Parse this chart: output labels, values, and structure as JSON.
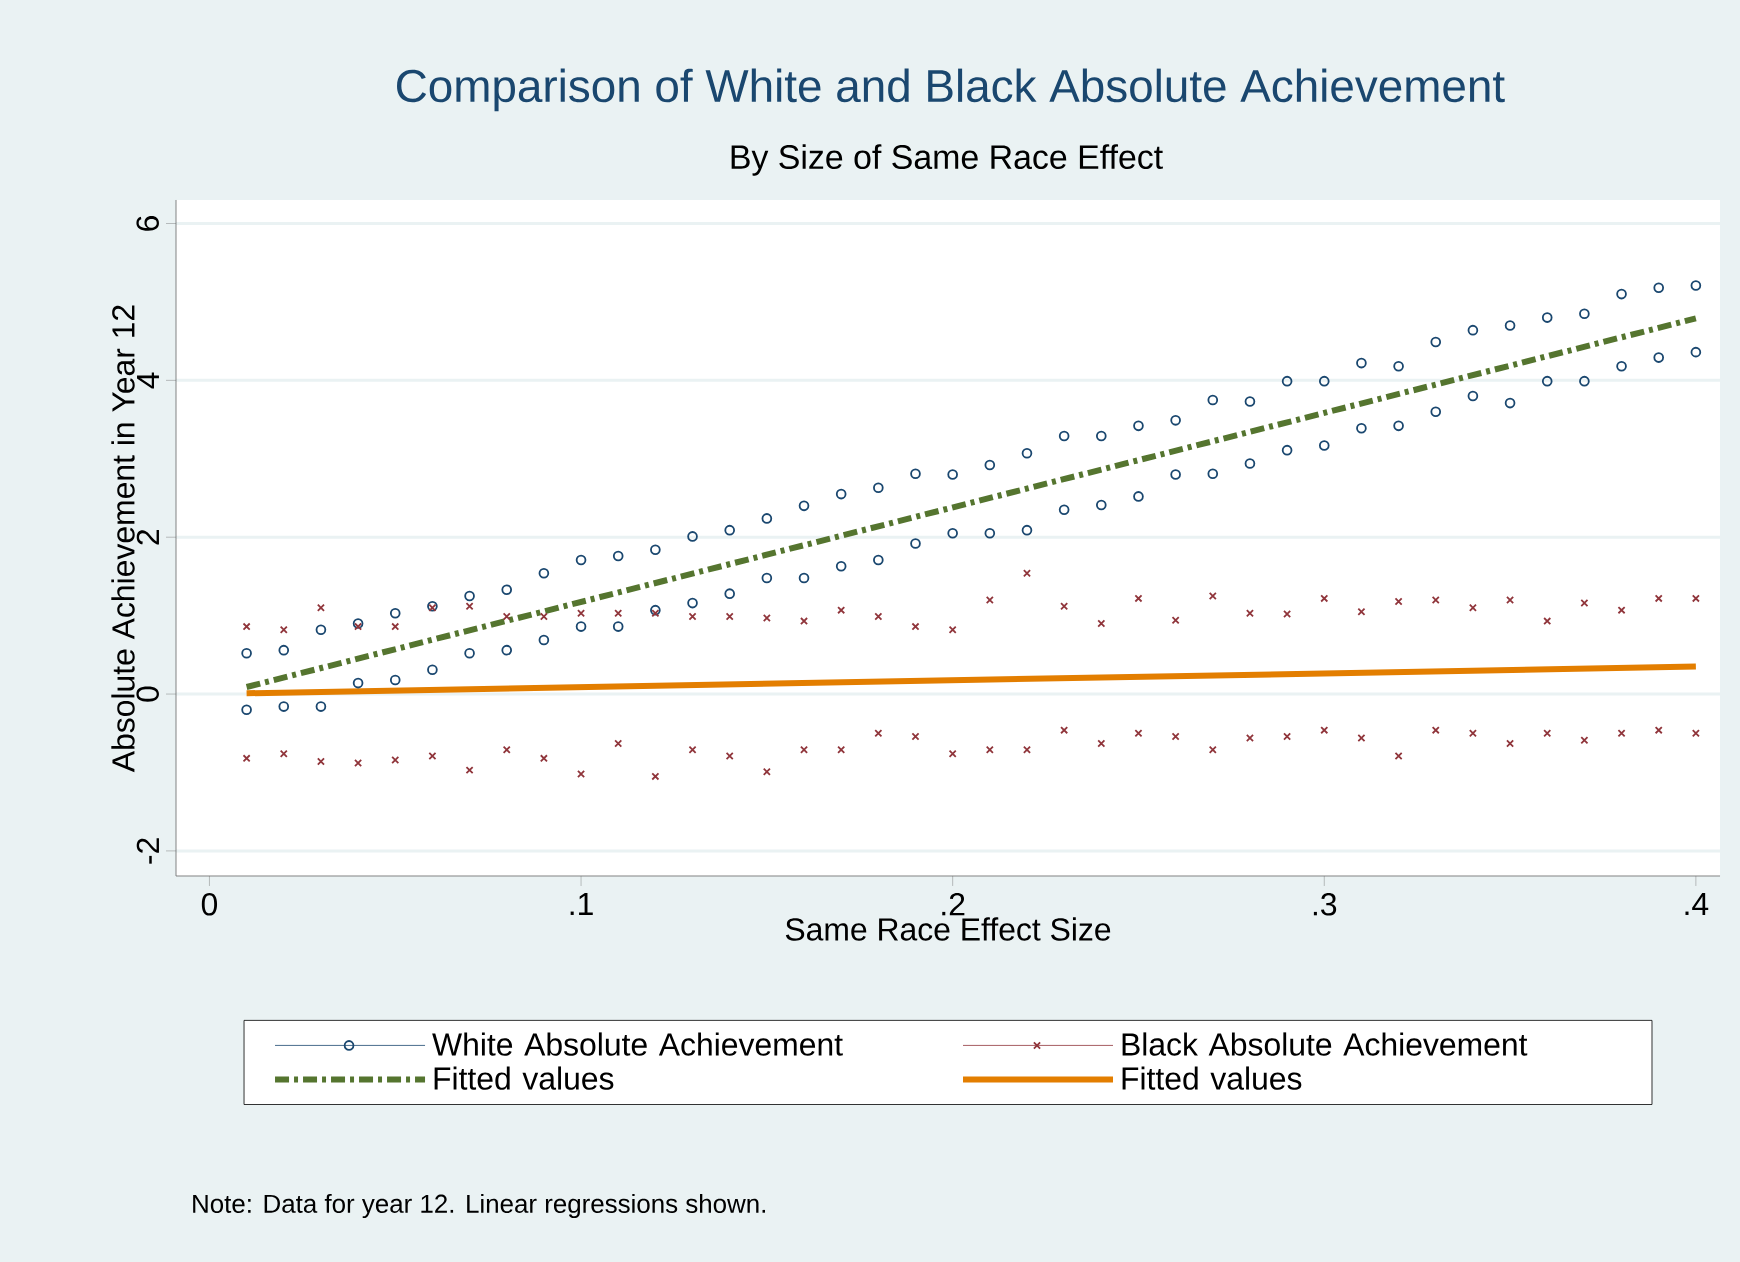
{
  "chart_data": {
    "type": "scatter",
    "title": "Comparison of White and Black Absolute Achievement",
    "subtitle": "By Size of Same Race Effect",
    "xlabel": "Same Race Effect Size",
    "ylabel": "Absolute Achievement in Year 12",
    "annotations": [
      "Note: Data for year 12. Linear regressions shown."
    ],
    "xlim": [
      -0.009,
      0.4065
    ],
    "ylim": [
      -2.32,
      6.3
    ],
    "xticks": [
      {
        "value": 0,
        "label": "0"
      },
      {
        "value": 0.1,
        "label": ".1"
      },
      {
        "value": 0.2,
        "label": ".2"
      },
      {
        "value": 0.3,
        "label": ".3"
      },
      {
        "value": 0.4,
        "label": ".4"
      }
    ],
    "yticks": [
      -2,
      0,
      2,
      4,
      6
    ],
    "grid": "y",
    "legend": "bottom",
    "series": [
      {
        "name": "White Absolute Achievement",
        "type": "scatter",
        "marker": "circle",
        "color": "#1a476f",
        "x": [
          0.01,
          0.01,
          0.02,
          0.02,
          0.03,
          0.03,
          0.04,
          0.04,
          0.05,
          0.05,
          0.06,
          0.06,
          0.07,
          0.07,
          0.08,
          0.08,
          0.09,
          0.09,
          0.1,
          0.1,
          0.11,
          0.11,
          0.12,
          0.12,
          0.13,
          0.13,
          0.14,
          0.14,
          0.15,
          0.15,
          0.16,
          0.16,
          0.17,
          0.17,
          0.18,
          0.18,
          0.19,
          0.19,
          0.2,
          0.2,
          0.21,
          0.21,
          0.22,
          0.22,
          0.23,
          0.23,
          0.24,
          0.24,
          0.25,
          0.25,
          0.26,
          0.26,
          0.27,
          0.27,
          0.28,
          0.28,
          0.29,
          0.29,
          0.3,
          0.3,
          0.31,
          0.31,
          0.32,
          0.32,
          0.33,
          0.33,
          0.34,
          0.34,
          0.35,
          0.35,
          0.36,
          0.36,
          0.37,
          0.37,
          0.38,
          0.38,
          0.39,
          0.39,
          0.4,
          0.4
        ],
        "values": [
          0.52,
          -0.2,
          0.56,
          -0.16,
          0.82,
          -0.16,
          0.9,
          0.14,
          1.03,
          0.18,
          1.12,
          0.31,
          1.25,
          0.52,
          1.33,
          0.56,
          1.54,
          0.69,
          1.71,
          0.86,
          1.76,
          0.86,
          1.84,
          1.07,
          2.01,
          1.16,
          2.09,
          1.28,
          2.24,
          1.48,
          2.4,
          1.48,
          2.55,
          1.63,
          2.63,
          1.71,
          2.81,
          1.92,
          2.8,
          2.05,
          2.92,
          2.05,
          3.07,
          2.09,
          3.29,
          2.35,
          3.29,
          2.41,
          3.42,
          2.52,
          3.49,
          2.8,
          3.75,
          2.81,
          3.73,
          2.94,
          3.99,
          3.11,
          3.99,
          3.17,
          4.22,
          3.39,
          4.18,
          3.42,
          4.49,
          3.6,
          4.64,
          3.8,
          4.7,
          3.71,
          4.8,
          3.99,
          4.85,
          3.99,
          5.1,
          4.18,
          5.18,
          4.29,
          5.21,
          4.36
        ]
      },
      {
        "name": "Black Absolute Achievement",
        "type": "scatter",
        "marker": "cross",
        "color": "#90353b",
        "x": [
          0.01,
          0.01,
          0.02,
          0.02,
          0.03,
          0.03,
          0.04,
          0.04,
          0.05,
          0.05,
          0.06,
          0.06,
          0.07,
          0.07,
          0.08,
          0.08,
          0.09,
          0.09,
          0.1,
          0.1,
          0.11,
          0.11,
          0.12,
          0.12,
          0.13,
          0.13,
          0.14,
          0.14,
          0.15,
          0.15,
          0.16,
          0.16,
          0.17,
          0.17,
          0.18,
          0.18,
          0.19,
          0.19,
          0.2,
          0.2,
          0.21,
          0.21,
          0.22,
          0.22,
          0.23,
          0.23,
          0.24,
          0.24,
          0.25,
          0.25,
          0.26,
          0.26,
          0.27,
          0.27,
          0.28,
          0.28,
          0.29,
          0.29,
          0.3,
          0.3,
          0.31,
          0.31,
          0.32,
          0.32,
          0.33,
          0.33,
          0.34,
          0.34,
          0.35,
          0.35,
          0.36,
          0.36,
          0.37,
          0.37,
          0.38,
          0.38,
          0.39,
          0.39,
          0.4,
          0.4
        ],
        "values": [
          0.86,
          -0.82,
          0.82,
          -0.76,
          1.1,
          -0.86,
          0.86,
          -0.88,
          0.86,
          -0.84,
          1.1,
          -0.79,
          1.12,
          -0.97,
          0.99,
          -0.71,
          0.99,
          -0.82,
          1.03,
          -1.02,
          1.03,
          -0.63,
          1.03,
          -1.05,
          0.99,
          -0.71,
          0.99,
          -0.79,
          0.97,
          -0.99,
          0.93,
          -0.71,
          1.07,
          -0.71,
          0.99,
          -0.5,
          0.86,
          -0.54,
          0.82,
          -0.76,
          1.2,
          -0.71,
          1.54,
          -0.71,
          1.12,
          -0.46,
          0.9,
          -0.63,
          1.22,
          -0.5,
          0.94,
          -0.54,
          1.25,
          -0.71,
          1.03,
          -0.56,
          1.02,
          -0.54,
          1.22,
          -0.46,
          1.05,
          -0.56,
          1.18,
          -0.79,
          1.2,
          -0.46,
          1.1,
          -0.5,
          1.2,
          -0.63,
          0.93,
          -0.5,
          1.16,
          -0.59,
          1.07,
          -0.5,
          1.22,
          -0.46,
          1.22,
          -0.5
        ]
      },
      {
        "name": "Fitted values",
        "type": "line",
        "line_style": "dashed",
        "color": "#55752f",
        "x": [
          0.01,
          0.4
        ],
        "values": [
          0.09,
          4.79
        ]
      },
      {
        "name": "Fitted values",
        "type": "line",
        "line_style": "solid",
        "color": "#e37e00",
        "x": [
          0.01,
          0.4
        ],
        "values": [
          0.01,
          0.35
        ]
      }
    ]
  }
}
